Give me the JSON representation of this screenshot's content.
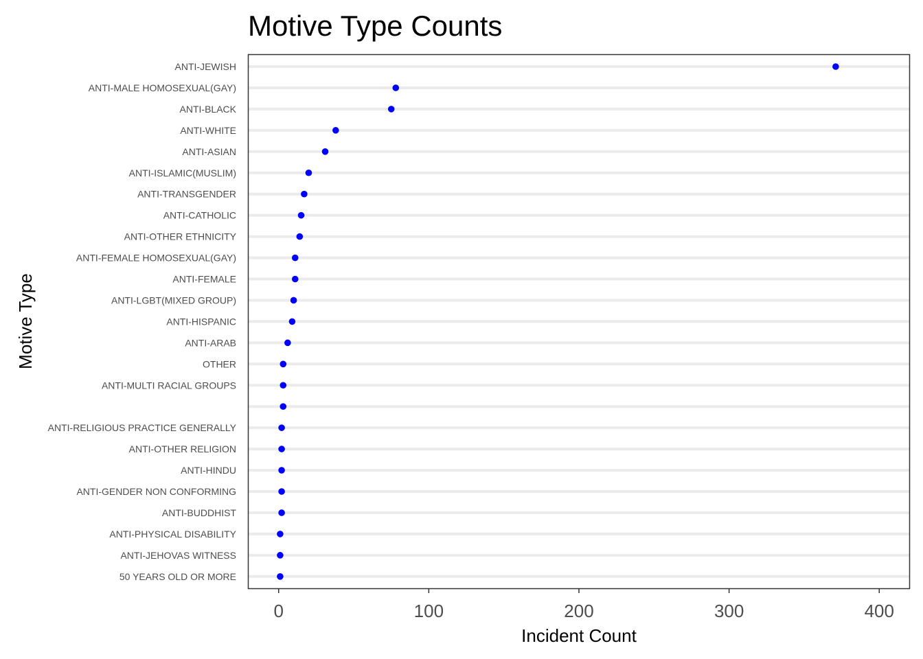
{
  "chart_data": {
    "type": "scatter",
    "title": "Motive Type Counts",
    "xlabel": "Incident Count",
    "ylabel": "Motive Type",
    "xlim": [
      -20,
      420
    ],
    "xticks": [
      0,
      100,
      200,
      300,
      400
    ],
    "grid": "horizontal major gridlines only",
    "legend": "none",
    "categories": [
      "ANTI-JEWISH",
      "ANTI-MALE HOMOSEXUAL(GAY)",
      "ANTI-BLACK",
      "ANTI-WHITE",
      "ANTI-ASIAN",
      "ANTI-ISLAMIC(MUSLIM)",
      "ANTI-TRANSGENDER",
      "ANTI-CATHOLIC",
      "ANTI-OTHER ETHNICITY",
      "ANTI-FEMALE HOMOSEXUAL(GAY)",
      "ANTI-FEMALE",
      "ANTI-LGBT(MIXED GROUP)",
      "ANTI-HISPANIC",
      "ANTI-ARAB",
      "OTHER",
      "ANTI-MULTI RACIAL GROUPS",
      "",
      "ANTI-RELIGIOUS PRACTICE GENERALLY",
      "ANTI-OTHER RELIGION",
      "ANTI-HINDU",
      "ANTI-GENDER NON CONFORMING",
      "ANTI-BUDDHIST",
      "ANTI-PHYSICAL DISABILITY",
      "ANTI-JEHOVAS WITNESS",
      "50 YEARS OLD OR MORE"
    ],
    "values": [
      371,
      78,
      75,
      38,
      31,
      20,
      17,
      15,
      14,
      11,
      11,
      10,
      9,
      6,
      3,
      3,
      3,
      2,
      2,
      2,
      2,
      2,
      1,
      1,
      1
    ],
    "colors": {
      "point": "#0000ff",
      "gridline": "#ebebeb",
      "panel_border": "#333333",
      "tick_label": "#4d4d4d",
      "background": "#ffffff"
    }
  }
}
